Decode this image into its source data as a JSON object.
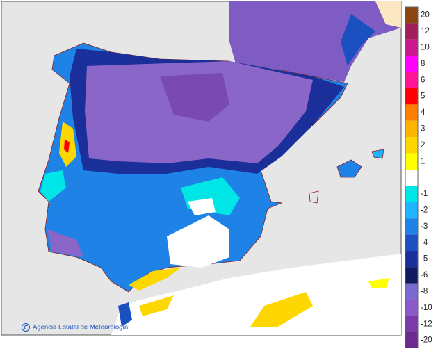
{
  "legend": {
    "items": [
      {
        "label": "20",
        "color": "#8b4513"
      },
      {
        "label": "12",
        "color": "#a01e5a"
      },
      {
        "label": "10",
        "color": "#c8188c"
      },
      {
        "label": "8",
        "color": "#ff00ff"
      },
      {
        "label": "6",
        "color": "#ff1493"
      },
      {
        "label": "5",
        "color": "#ff0000"
      },
      {
        "label": "4",
        "color": "#ff8000"
      },
      {
        "label": "3",
        "color": "#ffb400"
      },
      {
        "label": "2",
        "color": "#ffd700"
      },
      {
        "label": "1",
        "color": "#ffff00"
      },
      {
        "label": "-1",
        "color": "#00e6e6"
      },
      {
        "label": "-2",
        "color": "#1eb4ff"
      },
      {
        "label": "-3",
        "color": "#1e82e6"
      },
      {
        "label": "-4",
        "color": "#1a50c0"
      },
      {
        "label": "-5",
        "color": "#1a2f9a"
      },
      {
        "label": "-6",
        "color": "#101a60"
      },
      {
        "label": "-8",
        "color": "#7a6ad2"
      },
      {
        "label": "-10",
        "color": "#8c5ac8"
      },
      {
        "label": "-12",
        "color": "#7a3aa8"
      },
      {
        "label": "-20",
        "color": "#6a2a90"
      }
    ]
  },
  "attribution": "Agencia Estatal de Meteorología"
}
